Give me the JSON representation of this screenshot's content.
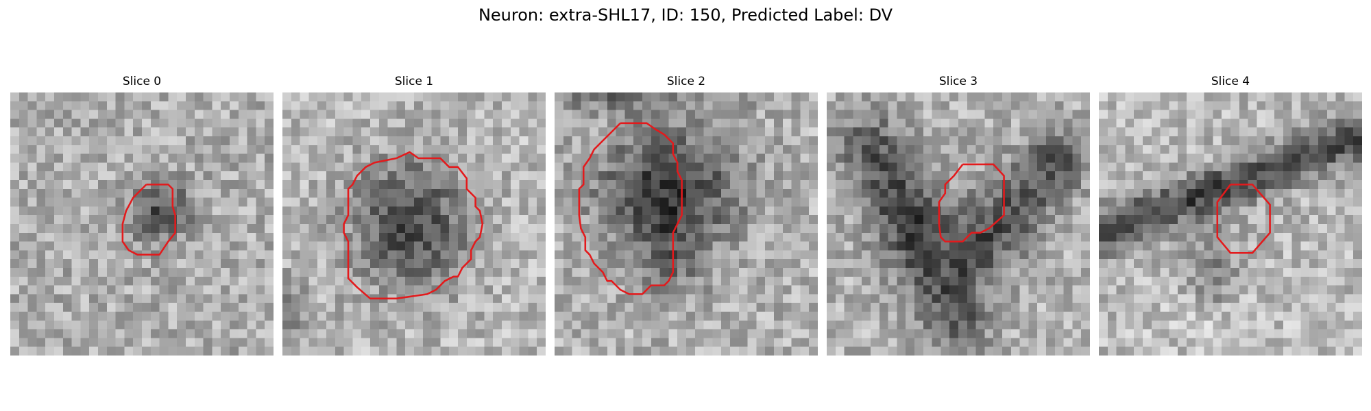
{
  "figure": {
    "title": "Neuron: extra-SHL17, ID: 150, Predicted Label: DV"
  },
  "panels": [
    {
      "title": "Slice 0",
      "image": "grayscale-noise-patch-with-small-dark-blob",
      "contour_color": "#e31a1c",
      "contour": [
        [
          15.5,
          10.5
        ],
        [
          18,
          10.5
        ],
        [
          18.5,
          11
        ],
        [
          18.5,
          13
        ],
        [
          18.8,
          14
        ],
        [
          18.8,
          16
        ],
        [
          18,
          17
        ],
        [
          17,
          18.5
        ],
        [
          14.5,
          18.5
        ],
        [
          13.5,
          18
        ],
        [
          12.8,
          17
        ],
        [
          12.8,
          15
        ],
        [
          13.2,
          13.5
        ],
        [
          14,
          12
        ],
        [
          15.5,
          10.5
        ]
      ]
    },
    {
      "title": "Slice 1",
      "image": "grayscale-noise-patch-with-large-dark-blob",
      "contour_color": "#e31a1c",
      "contour": [
        [
          13,
          7.5
        ],
        [
          14.5,
          6.8
        ],
        [
          15.5,
          7.5
        ],
        [
          18,
          7.5
        ],
        [
          19,
          8.5
        ],
        [
          20,
          8.5
        ],
        [
          21,
          9.8
        ],
        [
          21,
          11
        ],
        [
          22,
          12
        ],
        [
          22,
          13
        ],
        [
          22.5,
          13.5
        ],
        [
          22.8,
          15
        ],
        [
          22.5,
          16.5
        ],
        [
          22,
          17
        ],
        [
          21.5,
          18
        ],
        [
          21.5,
          19
        ],
        [
          20.5,
          20
        ],
        [
          20,
          21
        ],
        [
          19.5,
          21
        ],
        [
          18.5,
          21.5
        ],
        [
          17.5,
          22.5
        ],
        [
          16.5,
          23
        ],
        [
          13,
          23.5
        ],
        [
          10,
          23.5
        ],
        [
          8.5,
          22.2
        ],
        [
          7.5,
          21.2
        ],
        [
          7.5,
          17
        ],
        [
          7,
          16
        ],
        [
          7,
          15
        ],
        [
          7.5,
          14
        ],
        [
          7.5,
          11
        ],
        [
          8,
          10.5
        ],
        [
          8.5,
          9.5
        ],
        [
          9.5,
          8.5
        ],
        [
          10.5,
          8
        ],
        [
          13,
          7.5
        ]
      ]
    },
    {
      "title": "Slice 2",
      "image": "grayscale-noise-patch-with-large-dark-blob",
      "contour_color": "#e31a1c",
      "contour": [
        [
          7.5,
          3.5
        ],
        [
          10.5,
          3.5
        ],
        [
          11.5,
          4.2
        ],
        [
          12.5,
          4.8
        ],
        [
          13.5,
          5.8
        ],
        [
          13.5,
          7
        ],
        [
          14,
          8
        ],
        [
          14,
          9
        ],
        [
          14.5,
          10
        ],
        [
          14.5,
          14
        ],
        [
          14,
          15
        ],
        [
          13.5,
          16
        ],
        [
          13.5,
          20.5
        ],
        [
          13,
          21.5
        ],
        [
          12.5,
          22
        ],
        [
          11,
          22
        ],
        [
          10,
          23
        ],
        [
          8.5,
          23
        ],
        [
          7.5,
          22.5
        ],
        [
          7,
          22
        ],
        [
          6.5,
          21.5
        ],
        [
          6,
          21.5
        ],
        [
          5.5,
          20.5
        ],
        [
          5,
          20
        ],
        [
          4.5,
          19.5
        ],
        [
          4,
          18.5
        ],
        [
          3.5,
          18
        ],
        [
          3.5,
          16.5
        ],
        [
          3,
          15.5
        ],
        [
          2.8,
          14
        ],
        [
          2.8,
          11
        ],
        [
          3.3,
          10.5
        ],
        [
          3.3,
          8.5
        ],
        [
          4,
          7.5
        ],
        [
          4.5,
          6.5
        ],
        [
          5.5,
          5.5
        ],
        [
          6.5,
          4.5
        ],
        [
          7.5,
          3.5
        ]
      ]
    },
    {
      "title": "Slice 3",
      "image": "grayscale-noise-patch-with-diffuse-dark-region",
      "contour_color": "#e31a1c",
      "contour": [
        [
          15.5,
          8.2
        ],
        [
          19,
          8.2
        ],
        [
          20.2,
          9.5
        ],
        [
          20.2,
          14
        ],
        [
          18.5,
          15.5
        ],
        [
          17.5,
          16
        ],
        [
          16.5,
          16
        ],
        [
          15.5,
          17
        ],
        [
          13.5,
          17
        ],
        [
          13,
          16.5
        ],
        [
          12.8,
          15
        ],
        [
          12.8,
          12.5
        ],
        [
          13.5,
          11.5
        ],
        [
          13.5,
          10.5
        ],
        [
          14.5,
          9.5
        ],
        [
          15.5,
          8.2
        ]
      ]
    },
    {
      "title": "Slice 4",
      "image": "grayscale-noise-patch-with-dark-diagonal-band",
      "contour_color": "#e31a1c",
      "contour": [
        [
          15,
          10.5
        ],
        [
          17.5,
          10.5
        ],
        [
          19.5,
          12.8
        ],
        [
          19.5,
          16
        ],
        [
          17.5,
          18.3
        ],
        [
          15,
          18.3
        ],
        [
          13.5,
          16.5
        ],
        [
          13.5,
          12.5
        ],
        [
          15,
          10.5
        ]
      ]
    }
  ]
}
